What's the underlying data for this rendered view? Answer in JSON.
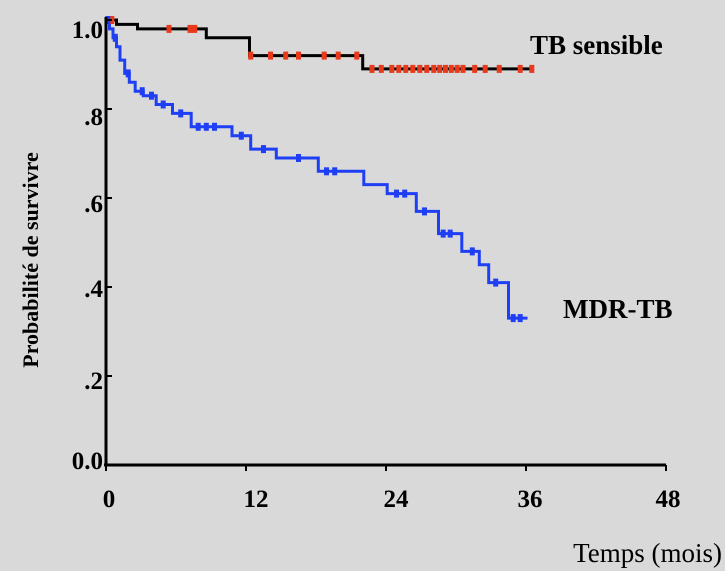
{
  "chart_data": {
    "type": "line",
    "subtype": "kaplan-meier-step",
    "title": "",
    "xlabel": "Temps (mois)",
    "ylabel": "Probabilité de survivre",
    "xlim": [
      0,
      48
    ],
    "ylim": [
      0,
      1.0
    ],
    "xticks": [
      {
        "value": 0,
        "label": "0"
      },
      {
        "value": 12,
        "label": "12"
      },
      {
        "value": 24,
        "label": "24"
      },
      {
        "value": 36,
        "label": "36"
      },
      {
        "value": 48,
        "label": "48"
      }
    ],
    "yticks": [
      {
        "value": 0.0,
        "label": "0.0"
      },
      {
        "value": 0.2,
        "label": ".2"
      },
      {
        "value": 0.4,
        "label": ".4"
      },
      {
        "value": 0.6,
        "label": ".6"
      },
      {
        "value": 0.8,
        "label": ".8"
      },
      {
        "value": 1.0,
        "label": "1.0"
      }
    ],
    "grid": false,
    "legend": "none",
    "series": [
      {
        "name": "TB sensible",
        "label_position": "right-of-end",
        "line_color": "#000000",
        "censor_color": "#e8391b",
        "steps": [
          [
            0,
            1.0
          ],
          [
            0.9,
            0.99
          ],
          [
            2.7,
            0.98
          ],
          [
            8.6,
            0.96
          ],
          [
            12.3,
            0.92
          ],
          [
            22.0,
            0.89
          ],
          [
            36.5,
            0.89
          ]
        ],
        "censored": [
          [
            0.5,
            1.0
          ],
          [
            5.4,
            0.98
          ],
          [
            7.2,
            0.98
          ],
          [
            7.6,
            0.98
          ],
          [
            12.4,
            0.92
          ],
          [
            14.1,
            0.92
          ],
          [
            15.4,
            0.92
          ],
          [
            16.5,
            0.92
          ],
          [
            18.7,
            0.92
          ],
          [
            19.9,
            0.92
          ],
          [
            21.5,
            0.92
          ],
          [
            22.8,
            0.89
          ],
          [
            23.6,
            0.89
          ],
          [
            24.5,
            0.89
          ],
          [
            25.1,
            0.89
          ],
          [
            25.7,
            0.89
          ],
          [
            26.3,
            0.89
          ],
          [
            26.9,
            0.89
          ],
          [
            27.5,
            0.89
          ],
          [
            28.1,
            0.89
          ],
          [
            28.6,
            0.89
          ],
          [
            29.1,
            0.89
          ],
          [
            29.6,
            0.89
          ],
          [
            30.1,
            0.89
          ],
          [
            30.6,
            0.89
          ],
          [
            31.6,
            0.89
          ],
          [
            32.5,
            0.89
          ],
          [
            33.7,
            0.89
          ],
          [
            35.5,
            0.89
          ],
          [
            36.5,
            0.89
          ]
        ]
      },
      {
        "name": "MDR-TB",
        "label_position": "right-of-end",
        "line_color": "#1f3ff5",
        "censor_color": "#1f3ff5",
        "steps": [
          [
            0,
            1.0
          ],
          [
            0.3,
            0.98
          ],
          [
            0.6,
            0.96
          ],
          [
            0.9,
            0.94
          ],
          [
            1.2,
            0.91
          ],
          [
            1.6,
            0.88
          ],
          [
            2.0,
            0.86
          ],
          [
            2.5,
            0.84
          ],
          [
            3.2,
            0.83
          ],
          [
            4.3,
            0.81
          ],
          [
            5.7,
            0.79
          ],
          [
            7.3,
            0.76
          ],
          [
            10.8,
            0.74
          ],
          [
            12.4,
            0.71
          ],
          [
            14.6,
            0.69
          ],
          [
            18.2,
            0.66
          ],
          [
            22.1,
            0.63
          ],
          [
            24.1,
            0.61
          ],
          [
            26.6,
            0.57
          ],
          [
            28.5,
            0.52
          ],
          [
            30.5,
            0.48
          ],
          [
            32.0,
            0.45
          ],
          [
            32.8,
            0.41
          ],
          [
            34.5,
            0.33
          ],
          [
            36.0,
            0.33
          ]
        ],
        "censored": [
          [
            0.15,
            1.0
          ],
          [
            0.8,
            0.96
          ],
          [
            1.9,
            0.88
          ],
          [
            3.1,
            0.84
          ],
          [
            3.9,
            0.83
          ],
          [
            4.9,
            0.81
          ],
          [
            6.4,
            0.79
          ],
          [
            7.9,
            0.76
          ],
          [
            8.6,
            0.76
          ],
          [
            9.3,
            0.76
          ],
          [
            11.6,
            0.74
          ],
          [
            13.5,
            0.71
          ],
          [
            16.5,
            0.69
          ],
          [
            18.9,
            0.66
          ],
          [
            19.6,
            0.66
          ],
          [
            24.9,
            0.61
          ],
          [
            25.6,
            0.61
          ],
          [
            27.3,
            0.57
          ],
          [
            28.9,
            0.52
          ],
          [
            29.5,
            0.52
          ],
          [
            31.4,
            0.48
          ],
          [
            33.4,
            0.41
          ],
          [
            34.9,
            0.33
          ],
          [
            35.5,
            0.33
          ]
        ]
      }
    ]
  }
}
